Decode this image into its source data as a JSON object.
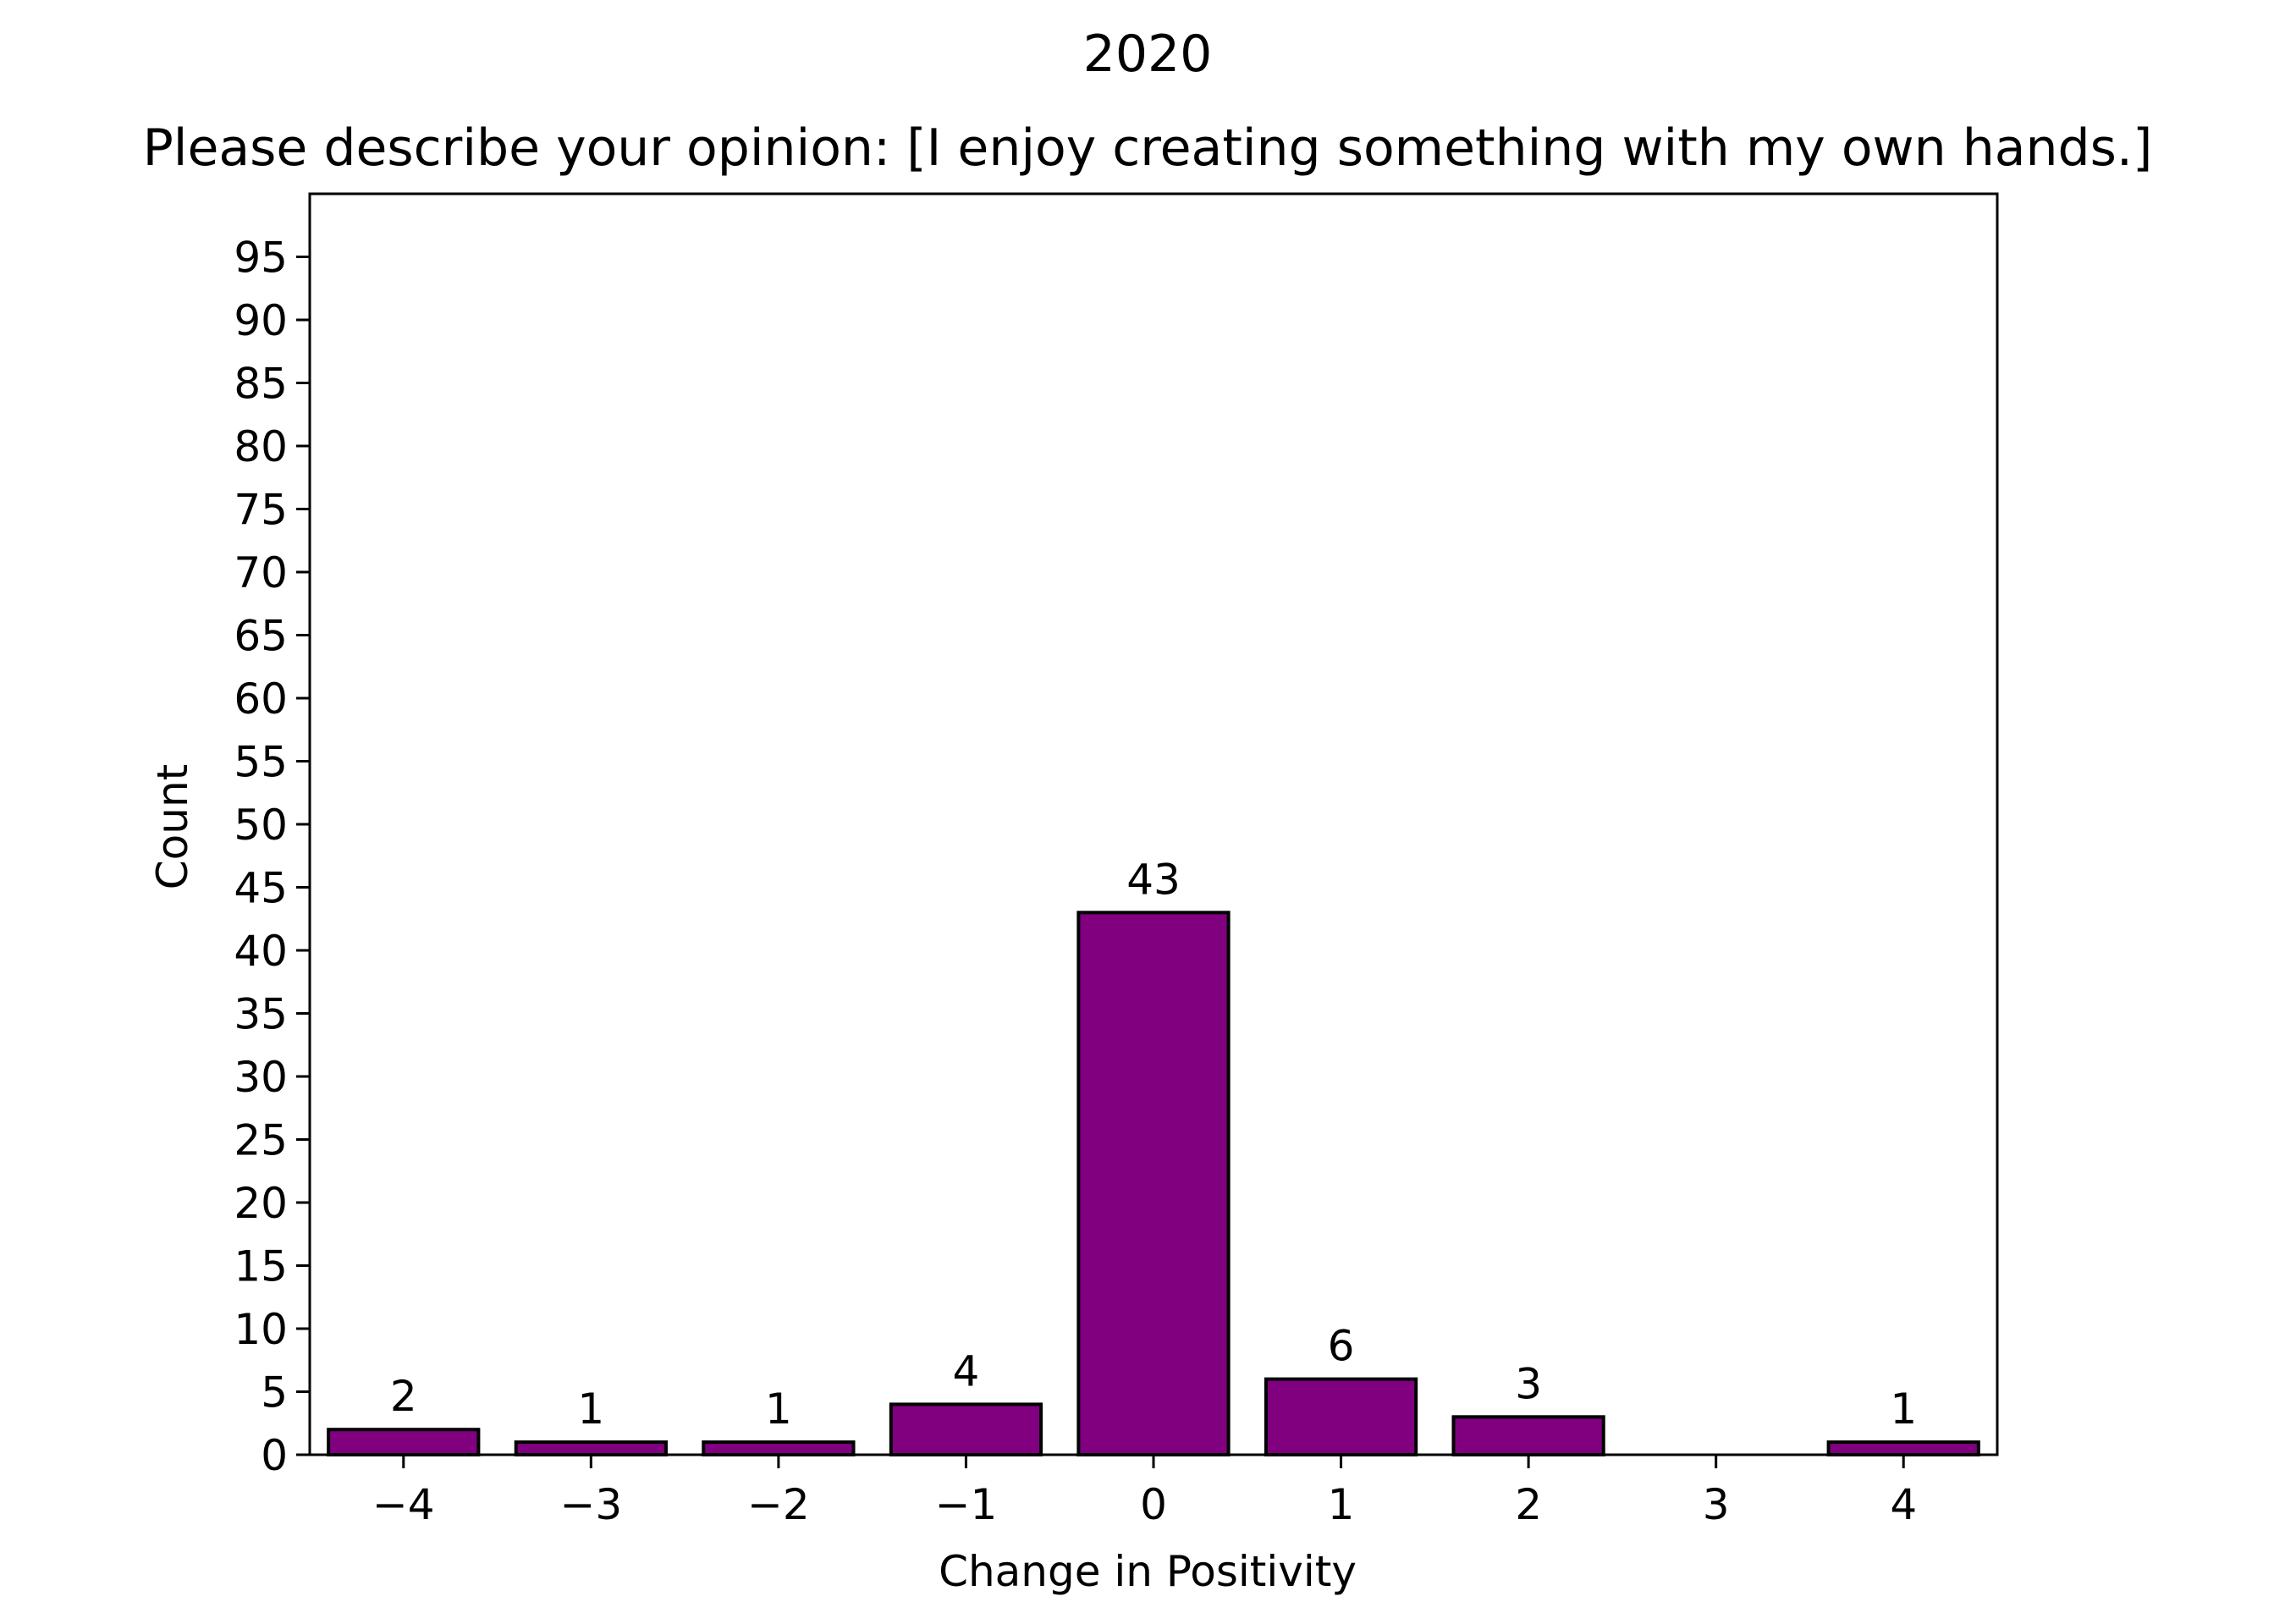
{
  "chart_data": {
    "type": "bar",
    "suptitle": "2020",
    "title": "Please describe your opinion: [I enjoy creating something with my own hands.]",
    "xlabel": "Change in Positivity",
    "ylabel": "Count",
    "categories": [
      -4,
      -3,
      -2,
      -1,
      0,
      1,
      2,
      3,
      4
    ],
    "category_labels": [
      "−4",
      "−3",
      "−2",
      "−1",
      "0",
      "1",
      "2",
      "3",
      "4"
    ],
    "values": [
      2,
      1,
      1,
      4,
      43,
      6,
      3,
      0,
      1
    ],
    "data_labels": [
      "2",
      "1",
      "1",
      "4",
      "43",
      "6",
      "3",
      "",
      "1"
    ],
    "xlim": [
      -4.5,
      4.5
    ],
    "ylim": [
      0,
      100
    ],
    "yticks": [
      0,
      5,
      10,
      15,
      20,
      25,
      30,
      35,
      40,
      45,
      50,
      55,
      60,
      65,
      70,
      75,
      80,
      85,
      90,
      95
    ],
    "grid": false,
    "legend": "none",
    "colors": {
      "bar_fill": "#800080",
      "bar_edge": "#000000",
      "axis": "#000000",
      "background": "#ffffff"
    }
  }
}
